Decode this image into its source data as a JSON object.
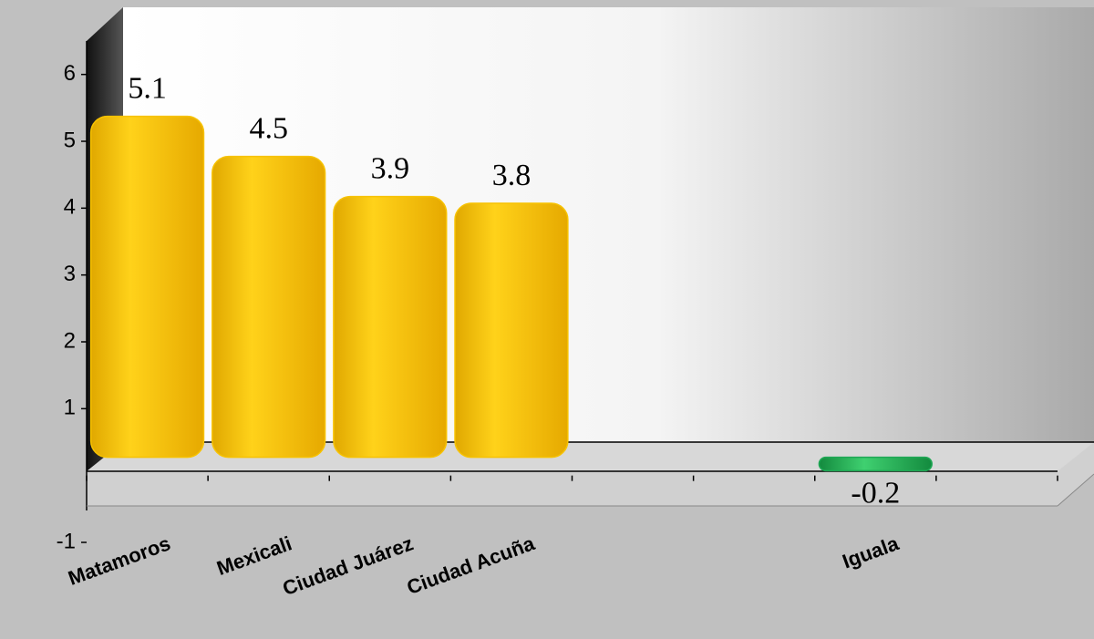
{
  "chart_data": {
    "type": "bar",
    "categories": [
      "Matamoros",
      "Mexicali",
      "Ciudad Juárez",
      "Ciudad Acuña",
      null,
      null,
      "Iguala",
      null
    ],
    "values": [
      5.1,
      4.5,
      3.9,
      3.8,
      null,
      null,
      -0.2,
      null
    ],
    "color": "#f7c200",
    "negative_color": "#1fa855",
    "ylim": [
      -1,
      6.5
    ],
    "yticks": [
      -1,
      1,
      2,
      3,
      4,
      5,
      6
    ]
  }
}
